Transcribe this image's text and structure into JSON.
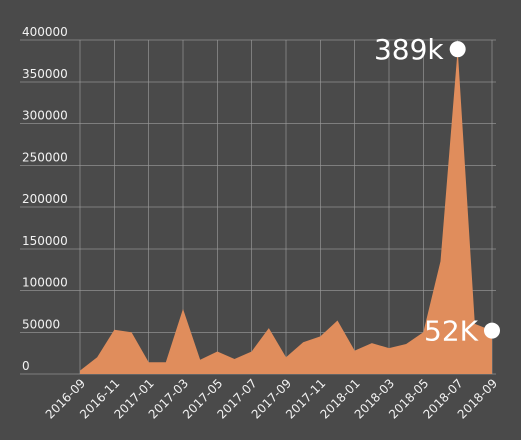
{
  "chart_data": {
    "type": "area",
    "title": "",
    "xlabel": "",
    "ylabel": "",
    "ylim": [
      0,
      400000
    ],
    "grid": true,
    "legend": "none",
    "colors": {
      "background": "#4a4a4a",
      "area": "#e08d5c",
      "grid": "#9a9a9a",
      "text": "#f2f2f2",
      "marker": "#ffffff"
    },
    "y_ticks": [
      "0",
      "50000",
      "100000",
      "150000",
      "200000",
      "250000",
      "300000",
      "350000",
      "400000"
    ],
    "y_tick_values": [
      0,
      50000,
      100000,
      150000,
      200000,
      250000,
      300000,
      350000,
      400000
    ],
    "x_tick_labels": [
      "2016-09",
      "2016-11",
      "2017-01",
      "2017-03",
      "2017-05",
      "2017-07",
      "2017-09",
      "2017-11",
      "2018-01",
      "2018-03",
      "2018-05",
      "2018-07",
      "2018-09"
    ],
    "categories": [
      "2016-09",
      "2016-10",
      "2016-11",
      "2016-12",
      "2017-01",
      "2017-02",
      "2017-03",
      "2017-04",
      "2017-05",
      "2017-06",
      "2017-07",
      "2017-08",
      "2017-09",
      "2017-10",
      "2017-11",
      "2017-12",
      "2018-01",
      "2018-02",
      "2018-03",
      "2018-04",
      "2018-05",
      "2018-06",
      "2018-07",
      "2018-08",
      "2018-09"
    ],
    "values": [
      4000,
      20000,
      53000,
      50000,
      14000,
      14000,
      78000,
      17000,
      27000,
      18000,
      27000,
      55000,
      20000,
      38000,
      45000,
      64000,
      28000,
      37000,
      31000,
      36000,
      50000,
      135000,
      389000,
      60000,
      52000
    ],
    "annotations": [
      {
        "label": "389k",
        "category": "2018-07",
        "value": 389000
      },
      {
        "label": "52K",
        "category": "2018-09",
        "value": 52000
      }
    ]
  }
}
